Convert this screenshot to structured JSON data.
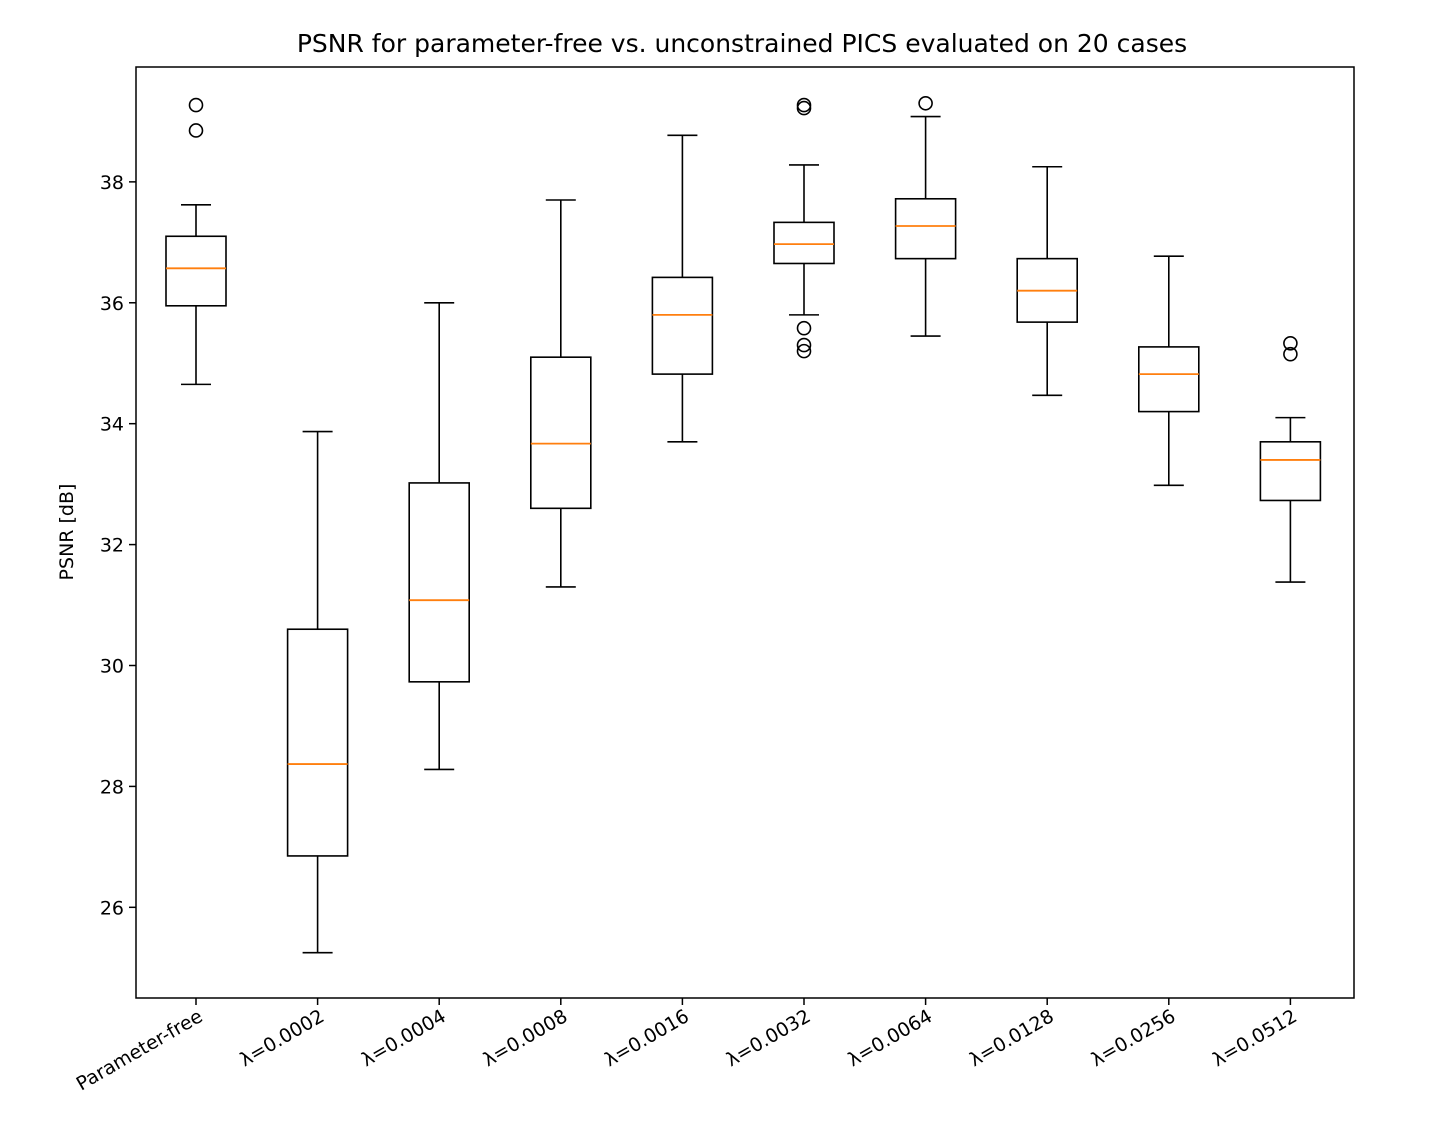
{
  "chart_data": {
    "type": "boxplot",
    "title": "PSNR for parameter-free vs. unconstrained PICS evaluated on 20 cases",
    "xlabel": "",
    "ylabel": "PSNR [dB]",
    "ylim": [
      24.5,
      39.9
    ],
    "yticks": [
      26,
      28,
      30,
      32,
      34,
      36,
      38
    ],
    "grid": false,
    "colors": {
      "box": "#000000",
      "median": "#ff7f0e",
      "background": "#ffffff"
    },
    "categories": [
      "Parameter-free",
      "λ=0.0002",
      "λ=0.0004",
      "λ=0.0008",
      "λ=0.0016",
      "λ=0.0032",
      "λ=0.0064",
      "λ=0.0128",
      "λ=0.0256",
      "λ=0.0512"
    ],
    "boxes": [
      {
        "label": "Parameter-free",
        "whislo": 34.65,
        "q1": 35.95,
        "med": 36.57,
        "q3": 37.1,
        "whishi": 37.62,
        "fliers": [
          39.27,
          38.85
        ]
      },
      {
        "label": "λ=0.0002",
        "whislo": 25.25,
        "q1": 26.85,
        "med": 28.37,
        "q3": 30.6,
        "whishi": 33.87,
        "fliers": []
      },
      {
        "label": "λ=0.0004",
        "whislo": 28.28,
        "q1": 29.73,
        "med": 31.08,
        "q3": 33.02,
        "whishi": 36.0,
        "fliers": []
      },
      {
        "label": "λ=0.0008",
        "whislo": 31.3,
        "q1": 32.6,
        "med": 33.67,
        "q3": 35.1,
        "whishi": 37.7,
        "fliers": []
      },
      {
        "label": "λ=0.0016",
        "whislo": 33.7,
        "q1": 34.82,
        "med": 35.8,
        "q3": 36.42,
        "whishi": 38.77,
        "fliers": []
      },
      {
        "label": "λ=0.0032",
        "whislo": 35.8,
        "q1": 36.65,
        "med": 36.97,
        "q3": 37.33,
        "whishi": 38.28,
        "fliers": [
          39.27,
          39.22,
          35.58,
          35.3,
          35.2
        ]
      },
      {
        "label": "λ=0.0064",
        "whislo": 35.45,
        "q1": 36.73,
        "med": 37.27,
        "q3": 37.72,
        "whishi": 39.08,
        "fliers": [
          39.3
        ]
      },
      {
        "label": "λ=0.0128",
        "whislo": 34.47,
        "q1": 35.68,
        "med": 36.2,
        "q3": 36.73,
        "whishi": 38.25,
        "fliers": []
      },
      {
        "label": "λ=0.0256",
        "whislo": 32.98,
        "q1": 34.2,
        "med": 34.82,
        "q3": 35.27,
        "whishi": 36.77,
        "fliers": []
      },
      {
        "label": "λ=0.0512",
        "whislo": 31.38,
        "q1": 32.73,
        "med": 33.4,
        "q3": 33.7,
        "whishi": 34.1,
        "fliers": [
          35.33,
          35.15
        ]
      }
    ]
  }
}
